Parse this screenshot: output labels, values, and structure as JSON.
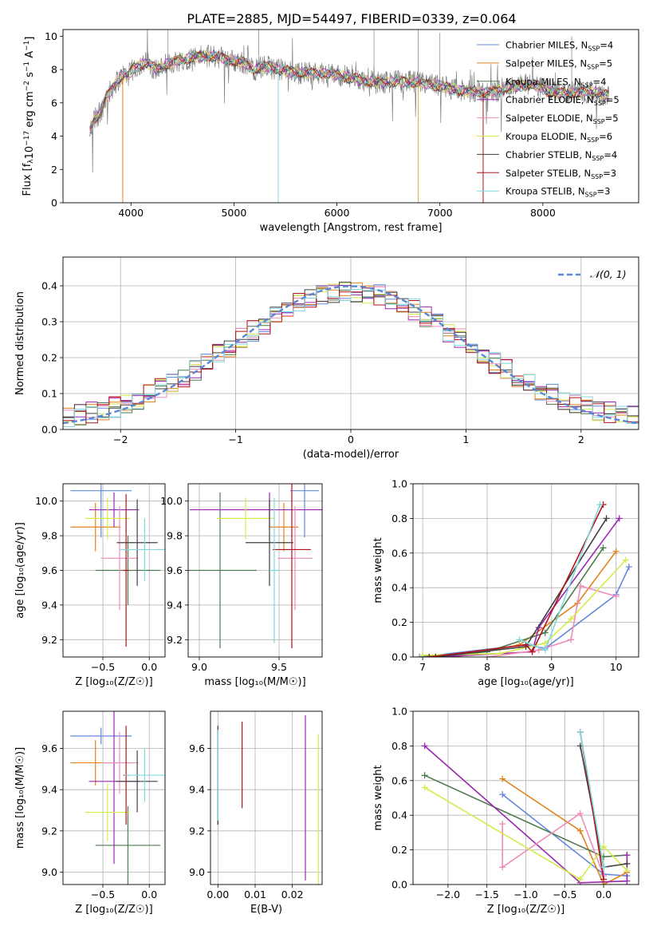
{
  "title": "PLATE=2885, MJD=54497, FIBERID=0339, z=0.064",
  "colors": [
    "#6488dd",
    "#e2831c",
    "#4f7a4f",
    "#9a27b0",
    "#f08cba",
    "#d3ec4c",
    "#404040",
    "#b2121a",
    "#7fd9dc"
  ],
  "chart_data": [
    {
      "id": "spectrum",
      "type": "line",
      "xlabel": "wavelength [Angstrom, rest frame]",
      "ylabel": "Flux [f",
      "xlim": [
        3340,
        8930
      ],
      "ylim": [
        0,
        10.4
      ],
      "xticks": [
        4000,
        5000,
        6000,
        7000,
        8000
      ],
      "yticks": [
        0,
        2,
        4,
        6,
        8,
        10
      ],
      "legend_position": "upper right",
      "legend": [
        {
          "model": "Chabrier MILES",
          "nssp": "4"
        },
        {
          "model": "Salpeter MILES",
          "nssp": "5"
        },
        {
          "model": "Kroupa MILES",
          "nssp": "4"
        },
        {
          "model": "Chabrier ELODIE",
          "nssp": "5"
        },
        {
          "model": "Salpeter ELODIE",
          "nssp": "5"
        },
        {
          "model": "Kroupa ELODIE",
          "nssp": "6"
        },
        {
          "model": "Chabrier STELIB",
          "nssp": "4"
        },
        {
          "model": "Salpeter STELIB",
          "nssp": "3"
        },
        {
          "model": "Kroupa STELIB",
          "nssp": "3"
        }
      ],
      "continuum": [
        [
          3600,
          4.3
        ],
        [
          3640,
          5.0
        ],
        [
          3700,
          5.4
        ],
        [
          3760,
          6.3
        ],
        [
          3850,
          7.2
        ],
        [
          3930,
          7.7
        ],
        [
          3970,
          7.6
        ],
        [
          4050,
          8.2
        ],
        [
          4150,
          8.4
        ],
        [
          4250,
          8.0
        ],
        [
          4350,
          8.3
        ],
        [
          4500,
          8.6
        ],
        [
          4650,
          8.8
        ],
        [
          4800,
          8.8
        ],
        [
          4900,
          8.7
        ],
        [
          5000,
          8.5
        ],
        [
          5100,
          8.4
        ],
        [
          5200,
          8.0
        ],
        [
          5300,
          8.2
        ],
        [
          5450,
          8.0
        ],
        [
          5600,
          7.8
        ],
        [
          5800,
          7.8
        ],
        [
          6000,
          7.7
        ],
        [
          6200,
          7.4
        ],
        [
          6400,
          7.2
        ],
        [
          6600,
          7.3
        ],
        [
          6800,
          7.2
        ],
        [
          7000,
          7.0
        ],
        [
          7200,
          6.7
        ],
        [
          7350,
          6.7
        ],
        [
          7500,
          6.6
        ],
        [
          7700,
          7.0
        ],
        [
          7900,
          7.1
        ],
        [
          8100,
          6.6
        ],
        [
          8300,
          6.6
        ],
        [
          8500,
          6.7
        ],
        [
          8640,
          6.4
        ]
      ]
    },
    {
      "id": "residuals",
      "type": "histogram",
      "xlabel": "(data-model)/error",
      "ylabel": "Normed distribution",
      "xlim": [
        -2.5,
        2.5
      ],
      "ylim": [
        0,
        0.48
      ],
      "xticks": [
        -2,
        -1,
        0,
        1,
        2
      ],
      "yticks": [
        0.0,
        0.1,
        0.2,
        0.3,
        0.4
      ],
      "grid": true,
      "legend_label": "𝒩(0, 1)",
      "reference_curve": "normal(0,1)",
      "bin_width": 0.1
    },
    {
      "id": "age_vs_Z",
      "type": "errorbar",
      "xlabel": "Z [log₁₀(Z/Z☉)]",
      "ylabel": "age  [log₁₀(age/yr)]",
      "xlim": [
        -0.93,
        0.17
      ],
      "ylim": [
        9.1,
        10.1
      ],
      "xticks": [
        -0.5,
        0.0
      ],
      "yticks": [
        9.2,
        9.4,
        9.6,
        9.8,
        10.0
      ],
      "grid": true,
      "points": [
        {
          "x": -0.52,
          "xerr": 0.33,
          "y": 10.06,
          "yerr": 0.27
        },
        {
          "x": -0.58,
          "xerr": 0.27,
          "y": 9.85,
          "yerr": 0.14
        },
        {
          "x": -0.23,
          "xerr": 0.35,
          "y": 9.6,
          "yerr": 0.2
        },
        {
          "x": -0.38,
          "xerr": 0.27,
          "y": 9.95,
          "yerr": 0.1
        },
        {
          "x": -0.32,
          "xerr": 0.2,
          "y": 9.67,
          "yerr": 0.3
        },
        {
          "x": -0.45,
          "xerr": 0.24,
          "y": 9.9,
          "yerr": 0.12
        },
        {
          "x": -0.13,
          "xerr": 0.22,
          "y": 9.76,
          "yerr": 0.25
        },
        {
          "x": -0.25,
          "xerr": 0.03,
          "y": 9.6,
          "yerr": 0.44
        },
        {
          "x": -0.05,
          "xerr": 0.26,
          "y": 9.72,
          "yerr": 0.18
        }
      ]
    },
    {
      "id": "age_vs_mass",
      "type": "errorbar",
      "xlabel": "mass [log₁₀(M/M☉)]",
      "ylabel": "",
      "xlim": [
        8.93,
        9.77
      ],
      "ylim": [
        9.1,
        10.1
      ],
      "xticks": [
        9.0,
        9.5
      ],
      "yticks": [
        9.2,
        9.4,
        9.6,
        9.8,
        10.0
      ],
      "grid": true,
      "points": [
        {
          "x": 9.66,
          "xerr": 0.09,
          "y": 10.06,
          "yerr": 0.27
        },
        {
          "x": 9.53,
          "xerr": 0.09,
          "y": 9.85,
          "yerr": 0.14
        },
        {
          "x": 9.13,
          "xerr": 0.23,
          "y": 9.6,
          "yerr": 0.45
        },
        {
          "x": 9.44,
          "xerr": 0.5,
          "y": 9.95,
          "yerr": 0.1
        },
        {
          "x": 9.6,
          "xerr": 0.11,
          "y": 9.67,
          "yerr": 0.3
        },
        {
          "x": 9.29,
          "xerr": 0.18,
          "y": 9.9,
          "yerr": 0.12
        },
        {
          "x": 9.44,
          "xerr": 0.15,
          "y": 9.76,
          "yerr": 0.25
        },
        {
          "x": 9.58,
          "xerr": 0.12,
          "y": 9.72,
          "yerr": 0.57
        },
        {
          "x": 9.47,
          "xerr": 0.03,
          "y": 9.6,
          "yerr": 0.42
        }
      ]
    },
    {
      "id": "mass_weight_vs_age",
      "type": "line",
      "xlabel": "age  [log₁₀(age/yr)]",
      "ylabel": "mass weight",
      "xlim": [
        6.85,
        10.35
      ],
      "ylim": [
        0,
        1
      ],
      "xticks": [
        7,
        8,
        9,
        10
      ],
      "yticks": [
        0.0,
        0.2,
        0.4,
        0.6,
        0.8,
        1.0
      ],
      "grid": true,
      "series": [
        {
          "x": [
            6.95,
            8.6,
            8.9,
            10.0,
            10.2
          ],
          "y": [
            0.0,
            0.07,
            0.05,
            0.36,
            0.52
          ]
        },
        {
          "x": [
            7.5,
            8.5,
            9.4,
            10.0
          ],
          "y": [
            0.0,
            0.07,
            0.31,
            0.61
          ]
        },
        {
          "x": [
            7.0,
            8.0,
            8.9,
            9.8
          ],
          "y": [
            0.0,
            0.03,
            0.14,
            0.63
          ]
        },
        {
          "x": [
            7.2,
            8.7,
            8.8,
            10.05
          ],
          "y": [
            0.0,
            0.03,
            0.17,
            0.8
          ]
        },
        {
          "x": [
            8.0,
            8.8,
            9.3,
            9.45,
            10.0
          ],
          "y": [
            0.0,
            0.04,
            0.1,
            0.41,
            0.35
          ]
        },
        {
          "x": [
            7.0,
            8.2,
            8.9,
            9.3,
            10.15
          ],
          "y": [
            0.01,
            0.02,
            0.08,
            0.22,
            0.56
          ]
        },
        {
          "x": [
            7.2,
            8.6,
            9.85
          ],
          "y": [
            0.0,
            0.06,
            0.8
          ]
        },
        {
          "x": [
            7.1,
            8.6,
            8.7,
            9.8
          ],
          "y": [
            0.0,
            0.07,
            0.03,
            0.88
          ]
        },
        {
          "x": [
            8.5,
            8.9,
            9.75
          ],
          "y": [
            0.1,
            0.04,
            0.88
          ]
        }
      ]
    },
    {
      "id": "mass_vs_Z",
      "type": "errorbar",
      "xlabel": "Z [log₁₀(Z/Z☉)]",
      "ylabel": "mass [log₁₀(M/M☉)]",
      "xlim": [
        -0.93,
        0.17
      ],
      "ylim": [
        8.94,
        9.78
      ],
      "xticks": [
        -0.5,
        0.0
      ],
      "yticks": [
        9.0,
        9.2,
        9.4,
        9.6
      ],
      "grid": true,
      "points": [
        {
          "x": -0.52,
          "xerr": 0.33,
          "y": 9.66,
          "yerr": 0.04
        },
        {
          "x": -0.58,
          "xerr": 0.27,
          "y": 9.53,
          "yerr": 0.11
        },
        {
          "x": -0.23,
          "xerr": 0.35,
          "y": 9.13,
          "yerr": 0.19
        },
        {
          "x": -0.38,
          "xerr": 0.27,
          "y": 9.44,
          "yerr": 0.4
        },
        {
          "x": -0.32,
          "xerr": 0.2,
          "y": 9.53,
          "yerr": 0.15
        },
        {
          "x": -0.45,
          "xerr": 0.24,
          "y": 9.29,
          "yerr": 0.14
        },
        {
          "x": -0.13,
          "xerr": 0.22,
          "y": 9.44,
          "yerr": 0.15
        },
        {
          "x": -0.25,
          "xerr": 0.03,
          "y": 9.47,
          "yerr": 0.24
        },
        {
          "x": -0.05,
          "xerr": 0.22,
          "y": 9.47,
          "yerr": 0.13
        }
      ]
    },
    {
      "id": "mass_vs_ebv",
      "type": "errorbar",
      "xlabel": "E(B-V)",
      "ylabel": "",
      "xlim": [
        -0.002,
        0.028
      ],
      "ylim": [
        8.94,
        9.78
      ],
      "xticks": [
        0.0,
        0.01,
        0.02
      ],
      "yticks": [
        9.0,
        9.2,
        9.4,
        9.6
      ],
      "grid": true,
      "points": [
        {
          "x": 0.0,
          "y": 9.66,
          "yerr": 0.04
        },
        {
          "x": 0.0,
          "y": 9.53,
          "yerr": 0.11
        },
        {
          "x": 0.0,
          "y": 9.35,
          "yerr": 0.12
        },
        {
          "x": 0.0235,
          "y": 9.36,
          "yerr": 0.4
        },
        {
          "x": 0.0,
          "y": 9.55,
          "yerr": 0.15
        },
        {
          "x": 0.027,
          "y": 9.29,
          "yerr": 0.38
        },
        {
          "x": 0.0,
          "y": 9.47,
          "yerr": 0.24
        },
        {
          "x": 0.0065,
          "y": 9.52,
          "yerr": 0.21
        },
        {
          "x": 0.0,
          "y": 9.47,
          "yerr": 0.22
        }
      ]
    },
    {
      "id": "mass_weight_vs_Z",
      "type": "line",
      "xlabel": "Z [log₁₀(Z/Z☉)]",
      "ylabel": "mass weight",
      "xlim": [
        -2.45,
        0.45
      ],
      "ylim": [
        0,
        1
      ],
      "xticks": [
        -2.0,
        -1.5,
        -1.0,
        -0.5,
        0.0
      ],
      "yticks": [
        0.0,
        0.2,
        0.4,
        0.6,
        0.8,
        1.0
      ],
      "grid": true,
      "series": [
        {
          "x": [
            -1.3,
            0.0,
            0.3
          ],
          "y": [
            0.52,
            0.06,
            0.05
          ]
        },
        {
          "x": [
            -1.3,
            -0.3,
            0.0,
            0.3
          ],
          "y": [
            0.61,
            0.31,
            0.0,
            0.07
          ]
        },
        {
          "x": [
            -2.3,
            0.0,
            0.3
          ],
          "y": [
            0.63,
            0.16,
            0.17
          ]
        },
        {
          "x": [
            -2.3,
            -0.3,
            0.3,
            0.3
          ],
          "y": [
            0.8,
            0.01,
            0.02,
            0.17
          ]
        },
        {
          "x": [
            -1.3,
            -1.3,
            -0.3,
            0.0
          ],
          "y": [
            0.35,
            0.1,
            0.41,
            0.05
          ]
        },
        {
          "x": [
            -2.3,
            -0.3,
            0.0,
            0.3
          ],
          "y": [
            0.56,
            0.03,
            0.22,
            0.08
          ]
        },
        {
          "x": [
            -0.3,
            0.0,
            0.3
          ],
          "y": [
            0.8,
            0.1,
            0.12
          ]
        },
        {
          "x": [
            -0.3,
            0.0
          ],
          "y": [
            0.88,
            0.03
          ]
        },
        {
          "x": [
            -0.3,
            0.0
          ],
          "y": [
            0.88,
            0.1
          ]
        }
      ]
    }
  ]
}
